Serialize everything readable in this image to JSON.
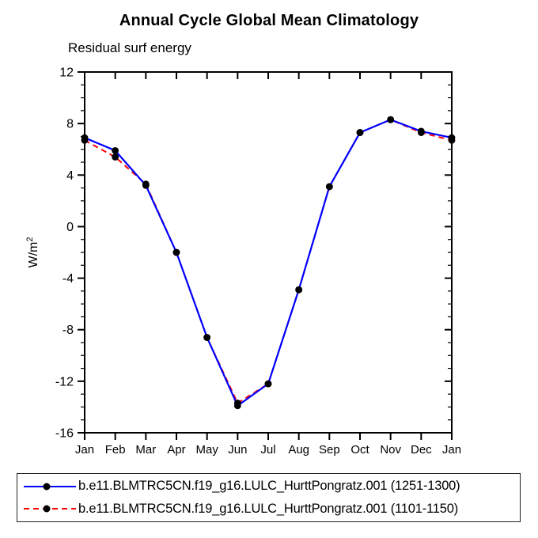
{
  "chart": {
    "title": "Annual Cycle Global Mean Climatology",
    "subtitle": "Residual surf energy"
  },
  "chart_data": {
    "type": "line",
    "title": "Annual Cycle Global Mean Climatology",
    "subtitle": "Residual surf energy",
    "ylabel_base": "W/m",
    "ylabel_sup": "2",
    "categories": [
      "Jan",
      "Feb",
      "Mar",
      "Apr",
      "May",
      "Jun",
      "Jul",
      "Aug",
      "Sep",
      "Oct",
      "Nov",
      "Dec",
      "Jan"
    ],
    "ylim": [
      -16,
      12
    ],
    "yticks": [
      12,
      8,
      4,
      0,
      -4,
      -8,
      -12,
      -16
    ],
    "ytick_major_step": 4,
    "ytick_minor_step": 1,
    "grid": false,
    "legend_position": "bottom-box",
    "axis_color": "#000000",
    "series": [
      {
        "name": "b.e11.BLMTRC5CN.f19_g16.LULC_HurttPongratz.001 (1251-1300)",
        "color": "#0000ff",
        "style": "solid",
        "marker": "filled-circle",
        "marker_color": "#000000",
        "values": [
          6.9,
          5.9,
          3.2,
          -2.0,
          -8.6,
          -13.9,
          -12.2,
          -4.9,
          3.1,
          7.3,
          8.3,
          7.4,
          6.9
        ]
      },
      {
        "name": "b.e11.BLMTRC5CN.f19_g16.LULC_HurttPongratz.001 (1101-1150)",
        "color": "#ff0000",
        "style": "dashed",
        "marker": "filled-circle",
        "marker_color": "#000000",
        "values": [
          6.7,
          5.4,
          3.3,
          -2.0,
          -8.6,
          -13.7,
          -12.2,
          -4.9,
          3.1,
          7.3,
          8.3,
          7.3,
          6.7
        ]
      }
    ]
  }
}
